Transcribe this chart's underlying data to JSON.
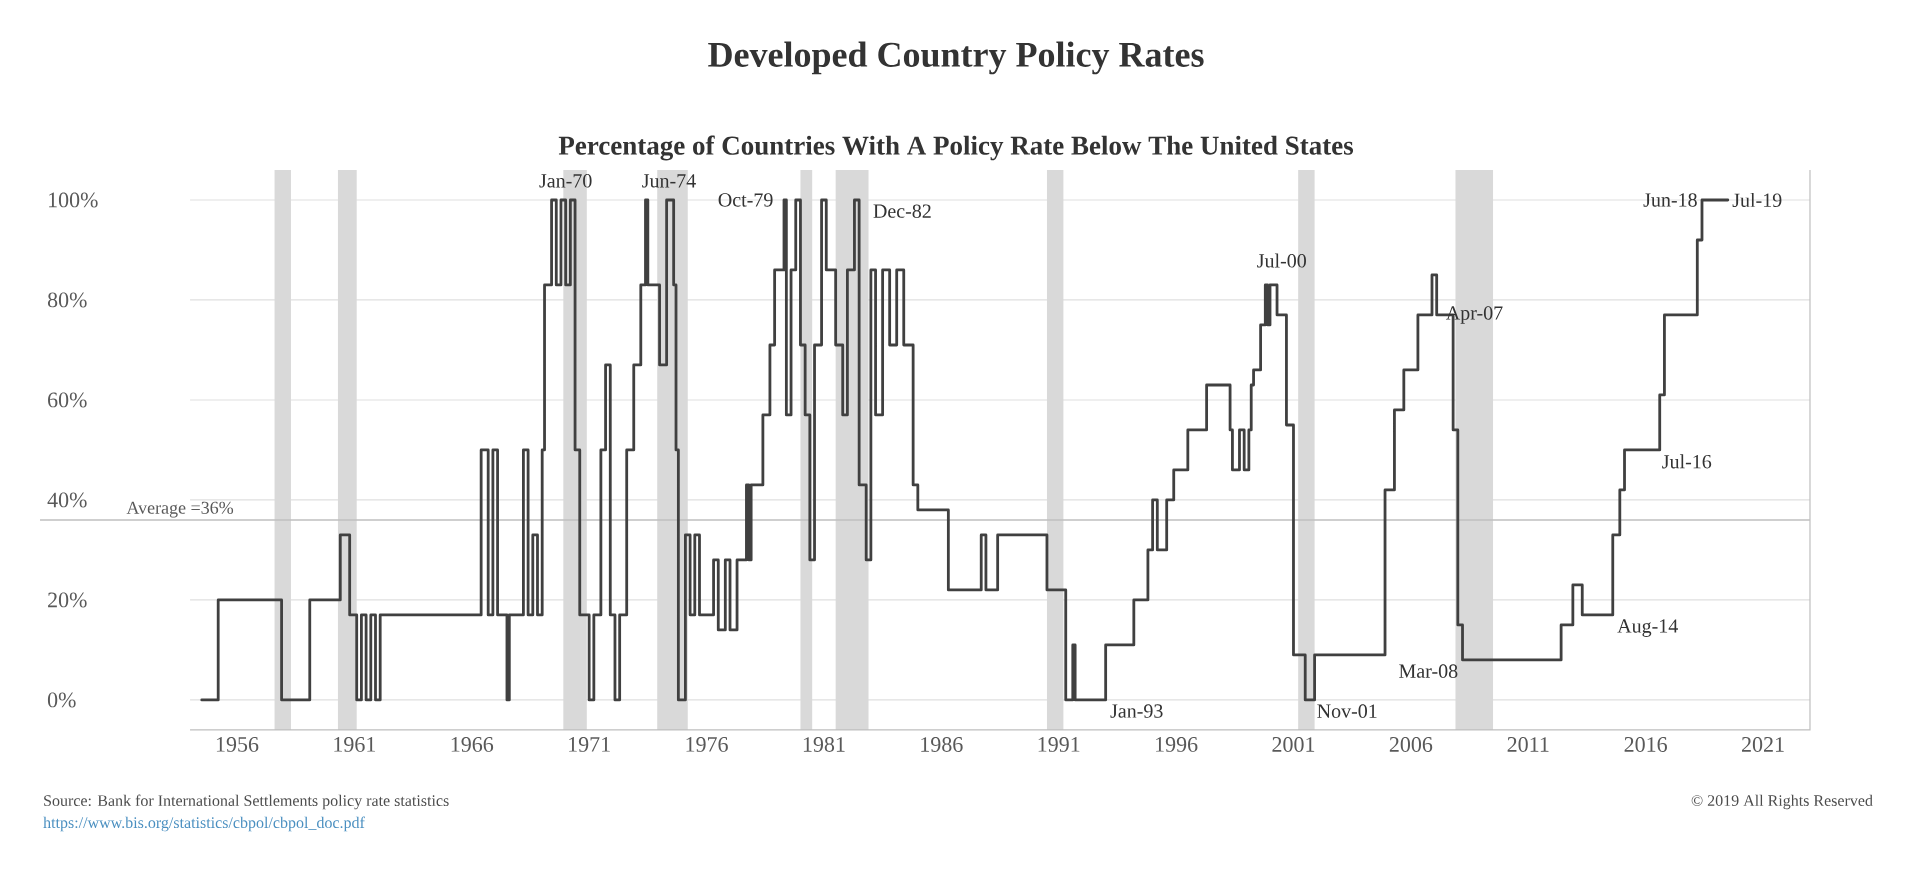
{
  "chart_data": {
    "type": "step",
    "title": "Developed Country Policy Rates",
    "subtitle": "Percentage of Countries With A Policy Rate Below The United States",
    "x": [
      1954.5,
      1955.2,
      1957.9,
      1959.1,
      1960.4,
      1960.8,
      1961.1,
      1961.3,
      1961.5,
      1961.7,
      1961.9,
      1962.1,
      1966.4,
      1966.7,
      1966.9,
      1967.1,
      1967.5,
      1967.6,
      1968.2,
      1968.4,
      1968.6,
      1968.8,
      1969.0,
      1969.1,
      1969.4,
      1969.6,
      1969.8,
      1970.0,
      1970.2,
      1970.4,
      1970.6,
      1971.0,
      1971.2,
      1971.5,
      1971.7,
      1971.9,
      1972.1,
      1972.3,
      1972.6,
      1972.9,
      1973.2,
      1973.4,
      1973.5,
      1974.0,
      1974.3,
      1974.6,
      1974.7,
      1974.8,
      1975.1,
      1975.3,
      1975.5,
      1975.7,
      1976.3,
      1976.5,
      1976.8,
      1977.0,
      1977.3,
      1977.7,
      1977.8,
      1977.9,
      1978.4,
      1978.7,
      1978.9,
      1979.3,
      1979.4,
      1979.6,
      1979.8,
      1980.0,
      1980.2,
      1980.4,
      1980.6,
      1980.9,
      1981.1,
      1981.5,
      1981.8,
      1982.0,
      1982.3,
      1982.5,
      1982.8,
      1983.0,
      1983.2,
      1983.5,
      1983.8,
      1984.1,
      1984.4,
      1984.8,
      1985.0,
      1986.3,
      1987.7,
      1987.9,
      1988.4,
      1990.5,
      1991.3,
      1991.6,
      1991.7,
      1993.0,
      1994.2,
      1994.8,
      1995.0,
      1995.2,
      1995.6,
      1995.9,
      1996.5,
      1997.3,
      1998.3,
      1998.4,
      1998.7,
      1998.9,
      1999.1,
      1999.2,
      1999.3,
      1999.6,
      1999.8,
      1999.9,
      2000.0,
      2000.3,
      2000.7,
      2001.0,
      2001.5,
      2001.9,
      2004.9,
      2005.3,
      2005.7,
      2006.3,
      2006.9,
      2007.1,
      2007.8,
      2008.0,
      2008.2,
      2012.4,
      2012.9,
      2013.3,
      2014.6,
      2014.9,
      2015.1,
      2016.6,
      2016.8,
      2018.2,
      2018.4,
      2019.5
    ],
    "values": [
      0,
      20,
      0,
      20,
      33,
      17,
      0,
      17,
      0,
      17,
      0,
      17,
      50,
      17,
      50,
      17,
      0,
      17,
      50,
      17,
      33,
      17,
      50,
      83,
      100,
      83,
      100,
      83,
      100,
      50,
      17,
      0,
      17,
      50,
      67,
      17,
      0,
      17,
      50,
      67,
      83,
      100,
      83,
      67,
      100,
      83,
      50,
      0,
      33,
      17,
      33,
      17,
      28,
      14,
      28,
      14,
      28,
      43,
      28,
      43,
      57,
      71,
      86,
      100,
      57,
      86,
      100,
      71,
      57,
      28,
      71,
      100,
      86,
      71,
      57,
      86,
      100,
      43,
      28,
      86,
      57,
      86,
      71,
      86,
      71,
      43,
      38,
      22,
      33,
      22,
      33,
      22,
      0,
      11,
      0,
      11,
      20,
      30,
      40,
      30,
      40,
      46,
      54,
      63,
      54,
      46,
      54,
      46,
      54,
      63,
      66,
      75,
      83,
      75,
      83,
      77,
      55,
      9,
      0,
      9,
      42,
      58,
      66,
      77,
      85,
      77,
      54,
      15,
      8,
      15,
      23,
      17,
      33,
      42,
      50,
      61,
      77,
      92,
      100,
      100
    ],
    "color": "#404040",
    "xlim": [
      1954,
      2023
    ],
    "ylim": [
      -6,
      106
    ],
    "xticks": [
      1956,
      1961,
      1966,
      1971,
      1976,
      1981,
      1986,
      1991,
      1996,
      2001,
      2006,
      2011,
      2016,
      2021
    ],
    "yticks": [
      {
        "value": 0,
        "label": "0%"
      },
      {
        "value": 20,
        "label": "20%"
      },
      {
        "value": 40,
        "label": "40%"
      },
      {
        "value": 60,
        "label": "60%"
      },
      {
        "value": 80,
        "label": "80%"
      },
      {
        "value": 100,
        "label": "100%"
      }
    ],
    "grid": "y",
    "ref_lines": [
      {
        "axis": "y",
        "value": 36,
        "label": "Average =36%",
        "color": "#bfbfbf"
      }
    ],
    "bands": [
      {
        "axis": "x",
        "from": 1957.6,
        "to": 1958.3,
        "color": "#d9d9d9"
      },
      {
        "axis": "x",
        "from": 1960.3,
        "to": 1961.1,
        "color": "#d9d9d9"
      },
      {
        "axis": "x",
        "from": 1969.9,
        "to": 1970.9,
        "color": "#d9d9d9"
      },
      {
        "axis": "x",
        "from": 1973.9,
        "to": 1975.2,
        "color": "#d9d9d9"
      },
      {
        "axis": "x",
        "from": 1980.0,
        "to": 1980.5,
        "color": "#d9d9d9"
      },
      {
        "axis": "x",
        "from": 1981.5,
        "to": 1982.9,
        "color": "#d9d9d9"
      },
      {
        "axis": "x",
        "from": 1990.5,
        "to": 1991.2,
        "color": "#d9d9d9"
      },
      {
        "axis": "x",
        "from": 2001.2,
        "to": 2001.9,
        "color": "#d9d9d9"
      },
      {
        "axis": "x",
        "from": 2007.9,
        "to": 2009.5,
        "color": "#d9d9d9"
      }
    ],
    "annotations": [
      {
        "text": "Jan-70",
        "x": 1970.0,
        "y": 100
      },
      {
        "text": "Jun-74",
        "x": 1974.4,
        "y": 100
      },
      {
        "text": "Oct-79",
        "x": 1979.8,
        "y": 100
      },
      {
        "text": "Dec-82",
        "x": 1982.9,
        "y": 100
      },
      {
        "text": "Jul-00",
        "x": 2000.5,
        "y": 84
      },
      {
        "text": "Jan-93",
        "x": 1993.0,
        "y": 0
      },
      {
        "text": "Nov-01",
        "x": 2001.8,
        "y": 0
      },
      {
        "text": "Apr-07",
        "x": 2007.3,
        "y": 77
      },
      {
        "text": "Mar-08",
        "x": 2008.2,
        "y": 8
      },
      {
        "text": "Aug-14",
        "x": 2014.6,
        "y": 17
      },
      {
        "text": "Jul-16",
        "x": 2016.5,
        "y": 50
      },
      {
        "text": "Jun-18",
        "x": 2018.4,
        "y": 100
      },
      {
        "text": "Jul-19",
        "x": 2019.5,
        "y": 100
      },
      "Source: Bank for International Settlements policy rate statistics",
      "https://www.bis.org/statistics/cbpol/cbpol_doc.pdf",
      "© 2019 All Rights Reserved"
    ]
  }
}
